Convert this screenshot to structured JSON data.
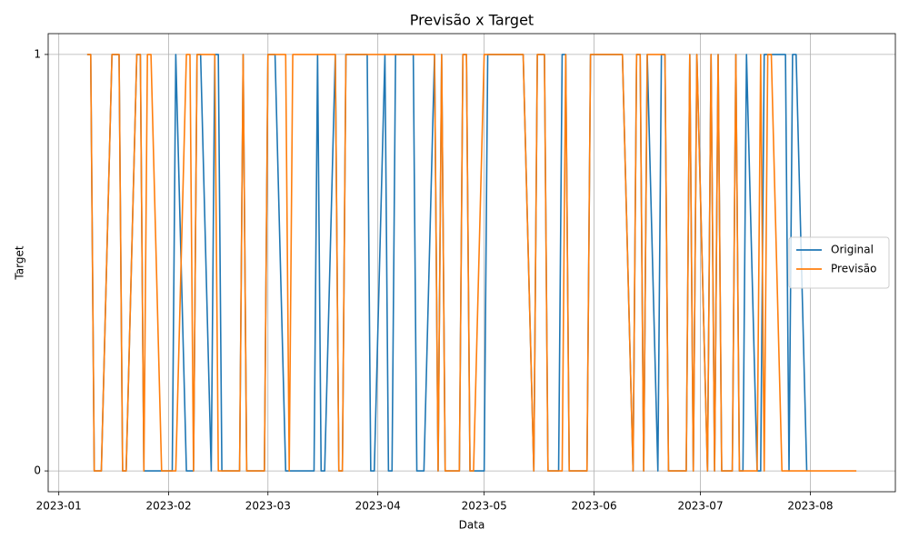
{
  "chart_data": {
    "type": "line",
    "title": "Previsão x Target",
    "x_label": "Data",
    "y_label": "Target",
    "x": [
      "2023-01-09",
      "2023-01-10",
      "2023-01-11",
      "2023-01-12",
      "2023-01-13",
      "2023-01-16",
      "2023-01-17",
      "2023-01-18",
      "2023-01-19",
      "2023-01-20",
      "2023-01-23",
      "2023-01-24",
      "2023-01-25",
      "2023-01-26",
      "2023-01-27",
      "2023-01-30",
      "2023-01-31",
      "2023-02-01",
      "2023-02-02",
      "2023-02-03",
      "2023-02-06",
      "2023-02-07",
      "2023-02-08",
      "2023-02-09",
      "2023-02-10",
      "2023-02-13",
      "2023-02-14",
      "2023-02-15",
      "2023-02-16",
      "2023-02-17",
      "2023-02-20",
      "2023-02-21",
      "2023-02-22",
      "2023-02-23",
      "2023-02-24",
      "2023-02-27",
      "2023-02-28",
      "2023-03-01",
      "2023-03-02",
      "2023-03-03",
      "2023-03-06",
      "2023-03-07",
      "2023-03-08",
      "2023-03-09",
      "2023-03-10",
      "2023-03-13",
      "2023-03-14",
      "2023-03-15",
      "2023-03-16",
      "2023-03-17",
      "2023-03-20",
      "2023-03-21",
      "2023-03-22",
      "2023-03-23",
      "2023-03-24",
      "2023-03-27",
      "2023-03-28",
      "2023-03-29",
      "2023-03-30",
      "2023-03-31",
      "2023-04-03",
      "2023-04-04",
      "2023-04-05",
      "2023-04-06",
      "2023-04-07",
      "2023-04-10",
      "2023-04-11",
      "2023-04-12",
      "2023-04-13",
      "2023-04-14",
      "2023-04-17",
      "2023-04-18",
      "2023-04-19",
      "2023-04-20",
      "2023-04-21",
      "2023-04-24",
      "2023-04-25",
      "2023-04-26",
      "2023-04-27",
      "2023-04-28",
      "2023-05-01",
      "2023-05-02",
      "2023-05-03",
      "2023-05-04",
      "2023-05-05",
      "2023-05-08",
      "2023-05-09",
      "2023-05-10",
      "2023-05-11",
      "2023-05-12",
      "2023-05-15",
      "2023-05-16",
      "2023-05-17",
      "2023-05-18",
      "2023-05-19",
      "2023-05-22",
      "2023-05-23",
      "2023-05-24",
      "2023-05-25",
      "2023-05-26",
      "2023-05-29",
      "2023-05-30",
      "2023-05-31",
      "2023-06-01",
      "2023-06-02",
      "2023-06-05",
      "2023-06-06",
      "2023-06-07",
      "2023-06-08",
      "2023-06-09",
      "2023-06-12",
      "2023-06-13",
      "2023-06-14",
      "2023-06-15",
      "2023-06-16",
      "2023-06-19",
      "2023-06-20",
      "2023-06-21",
      "2023-06-22",
      "2023-06-23",
      "2023-06-26",
      "2023-06-27",
      "2023-06-28",
      "2023-06-29",
      "2023-06-30",
      "2023-07-03",
      "2023-07-04",
      "2023-07-05",
      "2023-07-06",
      "2023-07-07",
      "2023-07-10",
      "2023-07-11",
      "2023-07-12",
      "2023-07-13",
      "2023-07-14",
      "2023-07-17",
      "2023-07-18",
      "2023-07-19",
      "2023-07-20",
      "2023-07-21",
      "2023-07-24",
      "2023-07-25",
      "2023-07-26",
      "2023-07-27",
      "2023-07-28",
      "2023-07-31",
      "2023-08-01",
      "2023-08-02",
      "2023-08-03",
      "2023-08-04",
      "2023-08-07",
      "2023-08-08",
      "2023-08-09",
      "2023-08-10",
      "2023-08-11",
      "2023-08-14"
    ],
    "series": [
      {
        "name": "Original",
        "color": "#1f77b4",
        "values": [
          1,
          1,
          0,
          0,
          0,
          1,
          1,
          1,
          0,
          0,
          1,
          1,
          0,
          0,
          0,
          0,
          0,
          0,
          0,
          1,
          0,
          0,
          0,
          1,
          1,
          0,
          1,
          1,
          0,
          0,
          0,
          0,
          1,
          0,
          0,
          0,
          0,
          1,
          1,
          1,
          0,
          0,
          0,
          0,
          0,
          0,
          0,
          1,
          0,
          0,
          1,
          0,
          0,
          1,
          1,
          1,
          1,
          1,
          0,
          0,
          1,
          0,
          0,
          1,
          1,
          1,
          1,
          0,
          0,
          0,
          1,
          0,
          1,
          0,
          0,
          0,
          1,
          1,
          0,
          0,
          0,
          1,
          1,
          1,
          1,
          1,
          1,
          1,
          1,
          1,
          0,
          1,
          1,
          1,
          0,
          0,
          1,
          1,
          0,
          0,
          0,
          0,
          1,
          1,
          1,
          1,
          1,
          1,
          1,
          1,
          0,
          1,
          1,
          0,
          1,
          0,
          1,
          1,
          0,
          0,
          0,
          0,
          1,
          0,
          1,
          0,
          1,
          0,
          1,
          0,
          0,
          1,
          0,
          0,
          1,
          0,
          0,
          1,
          1,
          1,
          1,
          1,
          0,
          1,
          1,
          0,
          null,
          null,
          null,
          null,
          null,
          null,
          null,
          null,
          null,
          null
        ]
      },
      {
        "name": "Previsão",
        "color": "#ff7f0e",
        "values": [
          1,
          1,
          0,
          0,
          0,
          1,
          1,
          1,
          0,
          0,
          1,
          1,
          0,
          1,
          1,
          0,
          0,
          0,
          0,
          0,
          1,
          1,
          0,
          1,
          1,
          1,
          1,
          0,
          0,
          0,
          0,
          0,
          1,
          0,
          0,
          0,
          0,
          1,
          1,
          1,
          1,
          0,
          1,
          1,
          1,
          1,
          1,
          1,
          1,
          1,
          1,
          0,
          0,
          1,
          1,
          1,
          1,
          1,
          1,
          1,
          1,
          1,
          1,
          1,
          1,
          1,
          1,
          1,
          1,
          1,
          1,
          0,
          1,
          0,
          0,
          0,
          1,
          1,
          0,
          0,
          1,
          1,
          1,
          1,
          1,
          1,
          1,
          1,
          1,
          1,
          0,
          1,
          1,
          1,
          0,
          0,
          0,
          1,
          0,
          0,
          0,
          0,
          1,
          1,
          1,
          1,
          1,
          1,
          1,
          1,
          0,
          1,
          1,
          0,
          1,
          1,
          1,
          1,
          0,
          0,
          0,
          0,
          1,
          0,
          1,
          0,
          1,
          0,
          1,
          0,
          0,
          1,
          0,
          0,
          0,
          0,
          1,
          0,
          1,
          1,
          0,
          0,
          0,
          0,
          0,
          0,
          0,
          0,
          0,
          0,
          0,
          0,
          0,
          0,
          0,
          0
        ]
      }
    ],
    "xlim": [
      "2022-12-29",
      "2023-08-25"
    ],
    "xticks": [
      {
        "value": "2023-01-01",
        "label": "2023-01"
      },
      {
        "value": "2023-02-01",
        "label": "2023-02"
      },
      {
        "value": "2023-03-01",
        "label": "2023-03"
      },
      {
        "value": "2023-04-01",
        "label": "2023-04"
      },
      {
        "value": "2023-05-01",
        "label": "2023-05"
      },
      {
        "value": "2023-06-01",
        "label": "2023-06"
      },
      {
        "value": "2023-07-01",
        "label": "2023-07"
      },
      {
        "value": "2023-08-01",
        "label": "2023-08"
      }
    ],
    "ylim": [
      -0.05,
      1.05
    ],
    "yticks": [
      0,
      1
    ],
    "grid": true,
    "legend": "center right"
  }
}
